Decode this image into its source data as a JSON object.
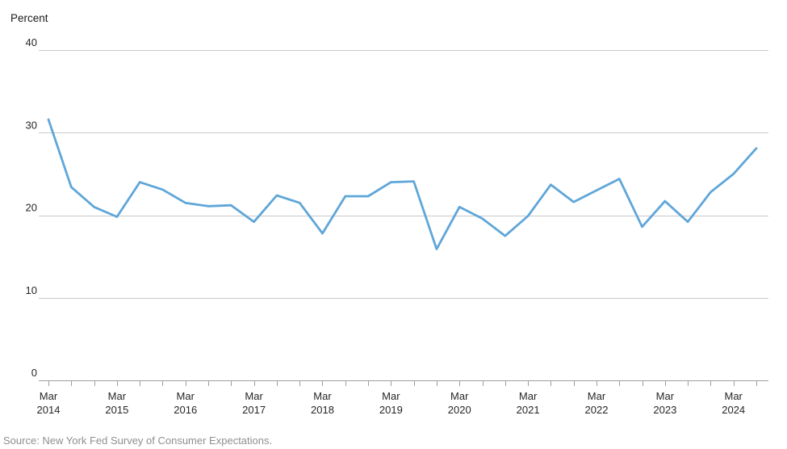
{
  "page": {
    "background_color": "#ffffff"
  },
  "chart_data": {
    "type": "line",
    "title": "",
    "ylabel": "Percent",
    "xlabel": "",
    "series_name": "Percent",
    "x": [
      "Mar 2014",
      "Jul 2014",
      "Nov 2014",
      "Mar 2015",
      "Jul 2015",
      "Nov 2015",
      "Mar 2016",
      "Jul 2016",
      "Nov 2016",
      "Mar 2017",
      "Jul 2017",
      "Nov 2017",
      "Mar 2018",
      "Jul 2018",
      "Nov 2018",
      "Mar 2019",
      "Jul 2019",
      "Nov 2019",
      "Mar 2020",
      "Jul 2020",
      "Nov 2020",
      "Mar 2021",
      "Jul 2021",
      "Nov 2021",
      "Mar 2022",
      "Jul 2022",
      "Nov 2022",
      "Mar 2023",
      "Jul 2023",
      "Nov 2023",
      "Mar 2024",
      "Jul 2024"
    ],
    "values": [
      31.6,
      23.4,
      21.0,
      19.8,
      24.0,
      23.1,
      21.5,
      21.1,
      21.2,
      19.2,
      22.4,
      21.5,
      17.8,
      22.3,
      22.3,
      24.0,
      24.1,
      15.9,
      21.0,
      19.6,
      17.5,
      19.9,
      23.7,
      21.6,
      23.0,
      24.4,
      18.6,
      21.7,
      19.2,
      22.8,
      25.0,
      28.1
    ],
    "y_ticks": [
      0,
      10,
      20,
      30,
      40
    ],
    "ylim": [
      0,
      40
    ],
    "x_year_tick_labels": [
      {
        "month": "Mar",
        "year": "2014"
      },
      {
        "month": "Mar",
        "year": "2015"
      },
      {
        "month": "Mar",
        "year": "2016"
      },
      {
        "month": "Mar",
        "year": "2017"
      },
      {
        "month": "Mar",
        "year": "2018"
      },
      {
        "month": "Mar",
        "year": "2019"
      },
      {
        "month": "Mar",
        "year": "2020"
      },
      {
        "month": "Mar",
        "year": "2021"
      },
      {
        "month": "Mar",
        "year": "2022"
      },
      {
        "month": "Mar",
        "year": "2023"
      },
      {
        "month": "Mar",
        "year": "2024"
      }
    ],
    "grid": "horizontal",
    "legend": "none",
    "line_color": "#5fa6d9",
    "gridline_color": "#c9c9c9",
    "axis_color": "#9e9e9e",
    "tick_label_color": "#262626"
  },
  "footer": {
    "source": "Source: New York Fed Survey of Consumer Expectations."
  }
}
